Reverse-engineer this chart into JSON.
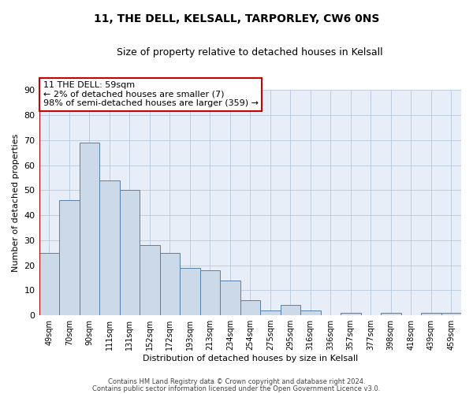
{
  "title": "11, THE DELL, KELSALL, TARPORLEY, CW6 0NS",
  "subtitle": "Size of property relative to detached houses in Kelsall",
  "xlabel": "Distribution of detached houses by size in Kelsall",
  "ylabel": "Number of detached properties",
  "bar_color": "#ccd9e8",
  "bar_edge_color": "#5580aa",
  "background_color": "#e8eef8",
  "grid_color": "#b8c8dc",
  "annotation_box_color": "#cc0000",
  "redline_color": "#cc0000",
  "categories": [
    "49sqm",
    "70sqm",
    "90sqm",
    "111sqm",
    "131sqm",
    "152sqm",
    "172sqm",
    "193sqm",
    "213sqm",
    "234sqm",
    "254sqm",
    "275sqm",
    "295sqm",
    "316sqm",
    "336sqm",
    "357sqm",
    "377sqm",
    "398sqm",
    "418sqm",
    "439sqm",
    "459sqm"
  ],
  "values": [
    25,
    46,
    69,
    54,
    50,
    28,
    25,
    19,
    18,
    14,
    6,
    2,
    4,
    2,
    0,
    1,
    0,
    1,
    0,
    1,
    1
  ],
  "ylim": [
    0,
    90
  ],
  "yticks": [
    0,
    10,
    20,
    30,
    40,
    50,
    60,
    70,
    80,
    90
  ],
  "annotation_text": "11 THE DELL: 59sqm\n← 2% of detached houses are smaller (7)\n98% of semi-detached houses are larger (359) →",
  "footer_line1": "Contains HM Land Registry data © Crown copyright and database right 2024.",
  "footer_line2": "Contains public sector information licensed under the Open Government Licence v3.0."
}
